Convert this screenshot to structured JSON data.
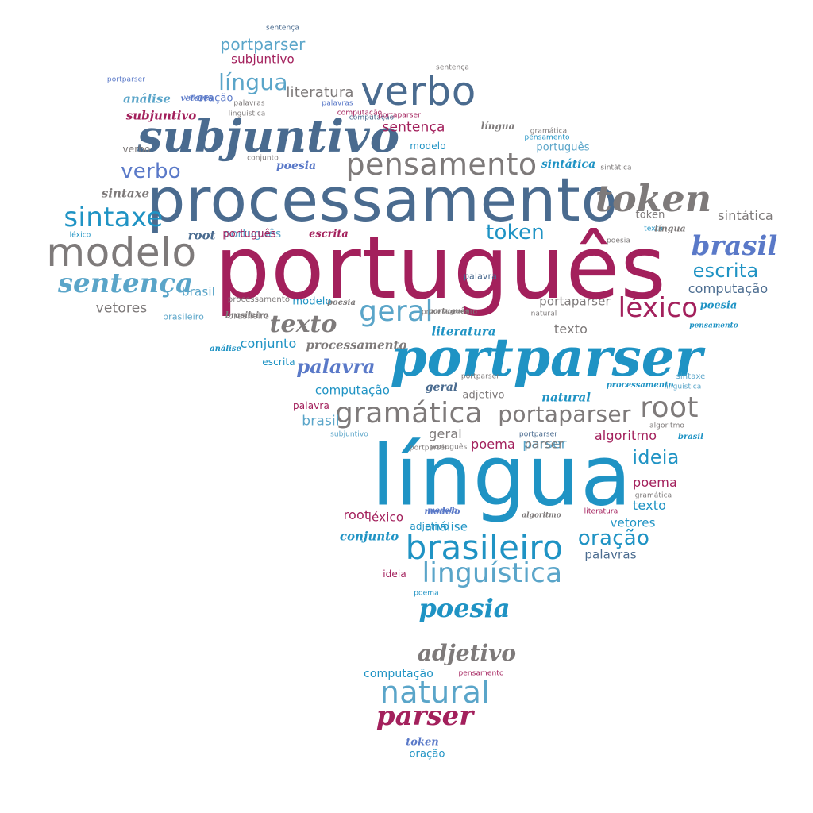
{
  "palette": {
    "maroon": "#a3205c",
    "slate": "#4a6b8f",
    "teal": "#1f93c4",
    "gray": "#7e7a7a",
    "periwinkle": "#5a79c8",
    "lightblue": "#5aa5c9"
  },
  "words": [
    {
      "text": "português",
      "color": "maroon",
      "style": "sans",
      "size": 110
    },
    {
      "text": "língua",
      "color": "teal",
      "style": "sans",
      "size": 105
    },
    {
      "text": "processamento",
      "color": "slate",
      "style": "sans",
      "size": 76
    },
    {
      "text": "portparser",
      "color": "teal",
      "style": "script",
      "size": 66
    },
    {
      "text": "subjuntivo",
      "color": "slate",
      "style": "script",
      "size": 56
    },
    {
      "text": "verbo",
      "color": "slate",
      "style": "sans",
      "size": 50
    },
    {
      "text": "modelo",
      "color": "gray",
      "style": "sans",
      "size": 50
    },
    {
      "text": "token",
      "color": "gray",
      "style": "script",
      "size": 46
    },
    {
      "text": "brasileiro",
      "color": "teal",
      "style": "sans",
      "size": 42
    },
    {
      "text": "pensamento",
      "color": "gray",
      "style": "sans",
      "size": 38
    },
    {
      "text": "gramática",
      "color": "gray",
      "style": "sans",
      "size": 36
    },
    {
      "text": "sintaxe",
      "color": "teal",
      "style": "sans",
      "size": 34
    },
    {
      "text": "natural",
      "color": "lightblue",
      "style": "sans",
      "size": 38
    },
    {
      "text": "linguística",
      "color": "lightblue",
      "style": "sans",
      "size": 34
    },
    {
      "text": "léxico",
      "color": "maroon",
      "style": "sans",
      "size": 34
    },
    {
      "text": "geral",
      "color": "lightblue",
      "style": "sans",
      "size": 36
    },
    {
      "text": "root",
      "color": "gray",
      "style": "sans",
      "size": 36
    },
    {
      "text": "portaparser",
      "color": "gray",
      "style": "sans",
      "size": 28
    },
    {
      "text": "sentença",
      "color": "lightblue",
      "style": "script",
      "size": 34
    },
    {
      "text": "parser",
      "color": "maroon",
      "style": "script",
      "size": 34
    },
    {
      "text": "poesia",
      "color": "teal",
      "style": "script",
      "size": 32
    },
    {
      "text": "brasil",
      "color": "periwinkle",
      "style": "script",
      "size": 34
    },
    {
      "text": "texto",
      "color": "gray",
      "style": "script",
      "size": 30
    },
    {
      "text": "adjetivo",
      "color": "gray",
      "style": "script",
      "size": 28
    },
    {
      "text": "língua",
      "color": "lightblue",
      "style": "sans",
      "size": 28
    },
    {
      "text": "verbo",
      "color": "periwinkle",
      "style": "sans",
      "size": 26
    },
    {
      "text": "escrita",
      "color": "teal",
      "style": "sans",
      "size": 24
    },
    {
      "text": "token",
      "color": "teal",
      "style": "sans",
      "size": 26
    },
    {
      "text": "oração",
      "color": "teal",
      "style": "sans",
      "size": 26
    },
    {
      "text": "ideia",
      "color": "teal",
      "style": "sans",
      "size": 24
    },
    {
      "text": "palavra",
      "color": "periwinkle",
      "style": "script",
      "size": 24
    },
    {
      "text": "portparser",
      "color": "lightblue",
      "style": "sans",
      "size": 20
    },
    {
      "text": "literatura",
      "color": "gray",
      "style": "sans",
      "size": 18
    },
    {
      "text": "subjuntivo",
      "color": "maroon",
      "style": "sans",
      "size": 15
    },
    {
      "text": "sentença",
      "color": "maroon",
      "style": "sans",
      "size": 17
    },
    {
      "text": "computação",
      "color": "slate",
      "style": "sans",
      "size": 16
    },
    {
      "text": "vetores",
      "color": "gray",
      "style": "sans",
      "size": 17
    },
    {
      "text": "poema",
      "color": "maroon",
      "style": "sans",
      "size": 16
    },
    {
      "text": "algoritmo",
      "color": "maroon",
      "style": "sans",
      "size": 16
    },
    {
      "text": "parser",
      "color": "lightblue",
      "style": "sans",
      "size": 17
    },
    {
      "text": "português",
      "color": "lightblue",
      "style": "sans",
      "size": 14
    },
    {
      "text": "sintática",
      "color": "gray",
      "style": "sans",
      "size": 16
    },
    {
      "text": "texto",
      "color": "gray",
      "style": "sans",
      "size": 16
    },
    {
      "text": "portaparser",
      "color": "gray",
      "style": "sans",
      "size": 15
    },
    {
      "text": "conjunto",
      "color": "teal",
      "style": "sans",
      "size": 16
    },
    {
      "text": "computação",
      "color": "teal",
      "style": "sans",
      "size": 15
    },
    {
      "text": "brasil",
      "color": "lightblue",
      "style": "sans",
      "size": 17
    },
    {
      "text": "geral",
      "color": "gray",
      "style": "sans",
      "size": 16
    },
    {
      "text": "parser",
      "color": "gray",
      "style": "sans",
      "size": 15
    },
    {
      "text": "poema",
      "color": "maroon",
      "style": "sans",
      "size": 16
    },
    {
      "text": "texto",
      "color": "teal",
      "style": "sans",
      "size": 16
    },
    {
      "text": "root",
      "color": "maroon",
      "style": "sans",
      "size": 16
    },
    {
      "text": "léxico",
      "color": "maroon",
      "style": "sans",
      "size": 15
    },
    {
      "text": "análise",
      "color": "teal",
      "style": "sans",
      "size": 15
    },
    {
      "text": "vetores",
      "color": "teal",
      "style": "sans",
      "size": 15
    },
    {
      "text": "palavras",
      "color": "slate",
      "style": "sans",
      "size": 15
    },
    {
      "text": "computação",
      "color": "teal",
      "style": "sans",
      "size": 14
    },
    {
      "text": "escrita",
      "color": "teal",
      "style": "sans",
      "size": 12
    },
    {
      "text": "palavra",
      "color": "maroon",
      "style": "sans",
      "size": 12
    },
    {
      "text": "brasil",
      "color": "lightblue",
      "style": "sans",
      "size": 15
    },
    {
      "text": "modelo",
      "color": "teal",
      "style": "sans",
      "size": 12
    },
    {
      "text": "oração",
      "color": "teal",
      "style": "sans",
      "size": 13
    },
    {
      "text": "português",
      "color": "maroon",
      "style": "sans",
      "size": 13
    },
    {
      "text": "modelo",
      "color": "teal",
      "style": "sans",
      "size": 13
    },
    {
      "text": "adjetivo",
      "color": "gray",
      "style": "sans",
      "size": 13
    },
    {
      "text": "ideia",
      "color": "maroon",
      "style": "sans",
      "size": 12
    },
    {
      "text": "processamento",
      "color": "gray",
      "style": "sans",
      "size": 10
    },
    {
      "text": "verbo",
      "color": "gray",
      "style": "sans",
      "size": 12
    },
    {
      "text": "vetores",
      "color": "periwinkle",
      "style": "sans",
      "size": 9
    },
    {
      "text": "adjetivo",
      "color": "teal",
      "style": "sans",
      "size": 12
    },
    {
      "text": "palavras",
      "color": "gray",
      "style": "sans",
      "size": 9
    },
    {
      "text": "poema",
      "color": "teal",
      "style": "sans",
      "size": 9
    },
    {
      "text": "brasileiro",
      "color": "gray",
      "style": "sans",
      "size": 11
    },
    {
      "text": "brasileiro",
      "color": "lightblue",
      "style": "sans",
      "size": 11
    },
    {
      "text": "subjuntivo",
      "color": "lightblue",
      "style": "sans",
      "size": 9
    },
    {
      "text": "portparser",
      "color": "gray",
      "style": "sans",
      "size": 9
    },
    {
      "text": "computação",
      "color": "slate",
      "style": "sans",
      "size": 9
    },
    {
      "text": "pensamento",
      "color": "maroon",
      "style": "sans",
      "size": 9
    },
    {
      "text": "sentença",
      "color": "slate",
      "style": "sans",
      "size": 9
    },
    {
      "text": "sentença",
      "color": "gray",
      "style": "sans",
      "size": 9
    },
    {
      "text": "portparser",
      "color": "periwinkle",
      "style": "sans",
      "size": 9
    },
    {
      "text": "linguística",
      "color": "gray",
      "style": "sans",
      "size": 9
    },
    {
      "text": "conjunto",
      "color": "gray",
      "style": "sans",
      "size": 9
    },
    {
      "text": "gramática",
      "color": "gray",
      "style": "sans",
      "size": 9
    },
    {
      "text": "pensamento",
      "color": "teal",
      "style": "sans",
      "size": 9
    },
    {
      "text": "português",
      "color": "lightblue",
      "style": "sans",
      "size": 13
    },
    {
      "text": "token",
      "color": "gray",
      "style": "sans",
      "size": 13
    },
    {
      "text": "sintática",
      "color": "gray",
      "style": "sans",
      "size": 9
    },
    {
      "text": "natural",
      "color": "gray",
      "style": "sans",
      "size": 9
    },
    {
      "text": "sintaxe",
      "color": "lightblue",
      "style": "sans",
      "size": 10
    },
    {
      "text": "linguística",
      "color": "lightblue",
      "style": "sans",
      "size": 9
    },
    {
      "text": "léxico",
      "color": "teal",
      "style": "sans",
      "size": 9
    },
    {
      "text": "palavra",
      "color": "slate",
      "style": "sans",
      "size": 11
    },
    {
      "text": "texto",
      "color": "teal",
      "style": "sans",
      "size": 9
    },
    {
      "text": "poesia",
      "color": "gray",
      "style": "sans",
      "size": 9
    },
    {
      "text": "palavras",
      "color": "periwinkle",
      "style": "sans",
      "size": 9
    },
    {
      "text": "oração",
      "color": "periwinkle",
      "style": "sans",
      "size": 13
    },
    {
      "text": "computação",
      "color": "maroon",
      "style": "sans",
      "size": 9
    },
    {
      "text": "portaparser",
      "color": "maroon",
      "style": "sans",
      "size": 9
    },
    {
      "text": "literatura",
      "color": "maroon",
      "style": "sans",
      "size": 9
    },
    {
      "text": "gramática",
      "color": "gray",
      "style": "sans",
      "size": 9
    },
    {
      "text": "algoritmo",
      "color": "gray",
      "style": "sans",
      "size": 9
    },
    {
      "text": "portparser",
      "color": "slate",
      "style": "sans",
      "size": 9
    },
    {
      "text": "portparser",
      "color": "gray",
      "style": "sans",
      "size": 9
    },
    {
      "text": "português",
      "color": "gray",
      "style": "sans",
      "size": 9
    },
    {
      "text": "processamento",
      "color": "gray",
      "style": "sans",
      "size": 9
    },
    {
      "text": "sintaxe",
      "color": "gray",
      "style": "script",
      "size": 15
    },
    {
      "text": "root",
      "color": "slate",
      "style": "script",
      "size": 15
    },
    {
      "text": "escrita",
      "color": "maroon",
      "style": "script",
      "size": 13
    },
    {
      "text": "análise",
      "color": "lightblue",
      "style": "script",
      "size": 15
    },
    {
      "text": "vetores",
      "color": "periwinkle",
      "style": "script",
      "size": 10
    },
    {
      "text": "subjuntivo",
      "color": "maroon",
      "style": "script",
      "size": 15
    },
    {
      "text": "poesia",
      "color": "periwinkle",
      "style": "script",
      "size": 14
    },
    {
      "text": "língua",
      "color": "gray",
      "style": "script",
      "size": 12
    },
    {
      "text": "sintática",
      "color": "teal",
      "style": "script",
      "size": 14
    },
    {
      "text": "literatura",
      "color": "teal",
      "style": "script",
      "size": 15
    },
    {
      "text": "processamento",
      "color": "gray",
      "style": "script",
      "size": 15
    },
    {
      "text": "geral",
      "color": "slate",
      "style": "script",
      "size": 14
    },
    {
      "text": "natural",
      "color": "teal",
      "style": "script",
      "size": 15
    },
    {
      "text": "poesia",
      "color": "teal",
      "style": "script",
      "size": 13
    },
    {
      "text": "língua",
      "color": "gray",
      "style": "script",
      "size": 11
    },
    {
      "text": "processamento",
      "color": "teal",
      "style": "script",
      "size": 10
    },
    {
      "text": "modelo",
      "color": "periwinkle",
      "style": "script",
      "size": 11
    },
    {
      "text": "conjunto",
      "color": "teal",
      "style": "script",
      "size": 15
    },
    {
      "text": "token",
      "color": "periwinkle",
      "style": "script",
      "size": 13
    },
    {
      "text": "poesia",
      "color": "gray",
      "style": "script",
      "size": 10
    },
    {
      "text": "algoritmo",
      "color": "gray",
      "style": "script",
      "size": 9
    },
    {
      "text": "análise",
      "color": "teal",
      "style": "script",
      "size": 10
    },
    {
      "text": "pensamento",
      "color": "teal",
      "style": "script",
      "size": 9
    },
    {
      "text": "brasil",
      "color": "teal",
      "style": "script",
      "size": 10
    },
    {
      "text": "brasileiro",
      "color": "gray",
      "style": "script",
      "size": 10
    },
    {
      "text": "português",
      "color": "gray",
      "style": "script",
      "size": 9
    },
    {
      "text": "modelo",
      "color": "periwinkle",
      "style": "script",
      "size": 9
    }
  ]
}
